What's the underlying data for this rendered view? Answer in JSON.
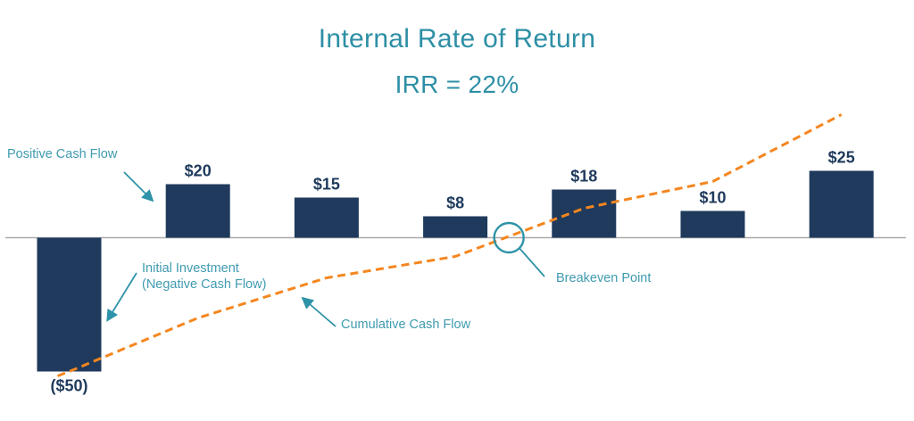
{
  "title": {
    "line1": "Internal Rate of Return",
    "line2": "IRR = 22%"
  },
  "colors": {
    "title_teal": "#2d8fa5",
    "annotation_teal": "#3f9bb0",
    "arrow_teal": "#2e93a8",
    "bar_navy": "#1f3a5c",
    "line_orange": "#f5861f",
    "axis_gray": "#a9a9a9"
  },
  "annotations": {
    "positive": "Positive Cash Flow",
    "initial_line1": "Initial Investment",
    "initial_line2": "(Negative Cash Flow)",
    "cumulative": "Cumulative Cash Flow",
    "breakeven": "Breakeven Point"
  },
  "chart_data": {
    "type": "bar",
    "title": "Internal Rate of Return",
    "subtitle": "IRR = 22%",
    "values": [
      -50,
      20,
      15,
      8,
      18,
      10,
      25
    ],
    "value_labels": [
      "($50)",
      "$20",
      "$15",
      "$8",
      "$18",
      "$10",
      "$25"
    ],
    "cumulative_line": {
      "name": "Cumulative Cash Flow",
      "style": "dashed",
      "values": [
        -50,
        -30,
        -15,
        -7,
        11,
        21,
        46
      ]
    },
    "breakeven": "between period 3 and 4 where cumulative cash flow crosses 0",
    "xlabel": "",
    "ylabel": "",
    "axis": "zero baseline only, no gridlines, no tick labels",
    "legend": "annotated with callout arrows instead of legend"
  }
}
